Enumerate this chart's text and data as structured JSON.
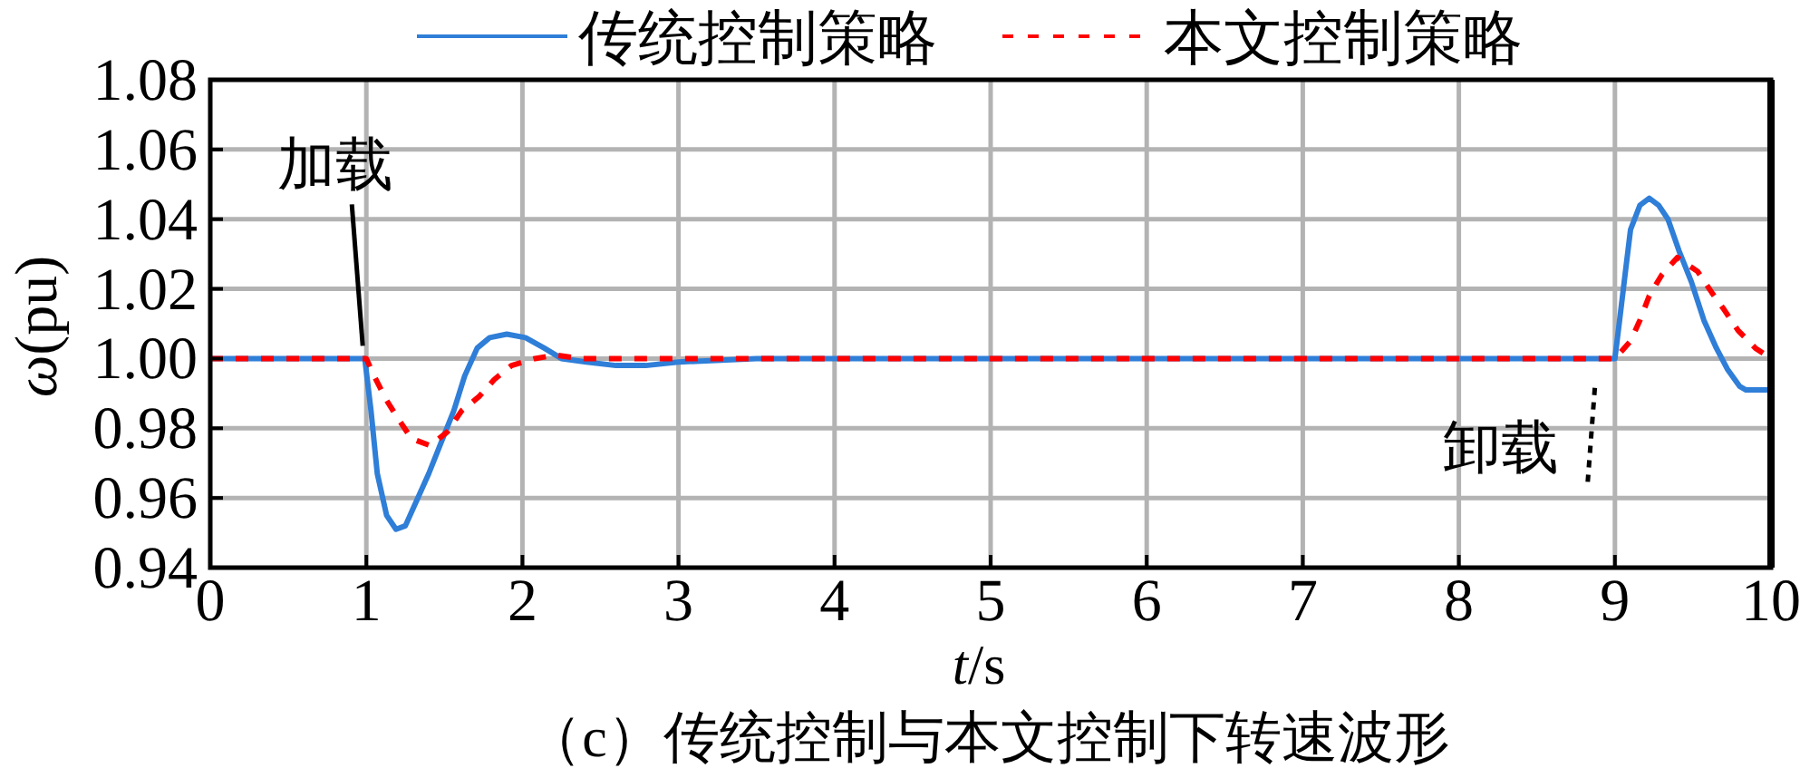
{
  "chart_data": {
    "type": "line",
    "title": "（c）传统控制与本文控制下转速波形",
    "xlabel": "t/s",
    "ylabel": "ω(pu)",
    "xlim": [
      0,
      10
    ],
    "ylim": [
      0.94,
      1.08
    ],
    "xticks": [
      0,
      1,
      2,
      3,
      4,
      5,
      6,
      7,
      8,
      9,
      10
    ],
    "yticks": [
      0.94,
      0.96,
      0.98,
      {
        "value": 1,
        "label": "1.00"
      },
      1.02,
      1.04,
      1.06,
      1.08
    ],
    "grid": true,
    "legend": "top",
    "series": [
      {
        "name": "传统控制策略",
        "color": "#2f7ed8",
        "x": [
          0,
          0.99,
          1.03,
          1.07,
          1.13,
          1.19,
          1.25,
          1.32,
          1.4,
          1.48,
          1.56,
          1.63,
          1.71,
          1.79,
          1.9,
          2.02,
          2.14,
          2.25,
          2.41,
          2.6,
          2.79,
          3,
          3.5,
          4,
          5,
          6,
          7,
          8,
          9,
          9.03,
          9.07,
          9.1,
          9.16,
          9.22,
          9.28,
          9.34,
          9.41,
          9.49,
          9.57,
          9.65,
          9.72,
          9.8,
          9.84,
          10
        ],
        "values": [
          1.0,
          1.0,
          0.985,
          0.967,
          0.955,
          0.951,
          0.952,
          0.959,
          0.967,
          0.976,
          0.985,
          0.995,
          1.003,
          1.006,
          1.007,
          1.006,
          1.003,
          1.0,
          0.999,
          0.998,
          0.998,
          0.999,
          1.0,
          1.0,
          1.0,
          1.0,
          1.0,
          1.0,
          1.0,
          1.011,
          1.026,
          1.037,
          1.044,
          1.046,
          1.044,
          1.04,
          1.031,
          1.022,
          1.011,
          1.003,
          0.997,
          0.992,
          0.991,
          0.991
        ]
      },
      {
        "name": "本文控制策略",
        "color": "#ff0000",
        "line_style": "dashed",
        "x": [
          0,
          1,
          1.05,
          1.13,
          1.2,
          1.29,
          1.41,
          1.52,
          1.61,
          1.72,
          1.82,
          1.93,
          2.08,
          2.21,
          2.37,
          3,
          4,
          5,
          6,
          7,
          8,
          9,
          9.1,
          9.16,
          9.22,
          9.3,
          9.4,
          9.53,
          9.62,
          9.7,
          9.79,
          9.9,
          10
        ],
        "values": [
          1.0,
          1.0,
          0.995,
          0.988,
          0.983,
          0.977,
          0.975,
          0.979,
          0.985,
          0.989,
          0.994,
          0.998,
          1.0,
          1.001,
          1.0,
          1.0,
          1.0,
          1.0,
          1.0,
          1.0,
          1.0,
          1.0,
          1.005,
          1.011,
          1.018,
          1.024,
          1.029,
          1.025,
          1.019,
          1.014,
          1.008,
          1.003,
          1.0
        ]
      }
    ],
    "annotations": [
      {
        "text": "加载",
        "x": 1,
        "y": 1.0
      },
      {
        "text": "卸载",
        "x": 9,
        "y": 1.0
      }
    ]
  }
}
